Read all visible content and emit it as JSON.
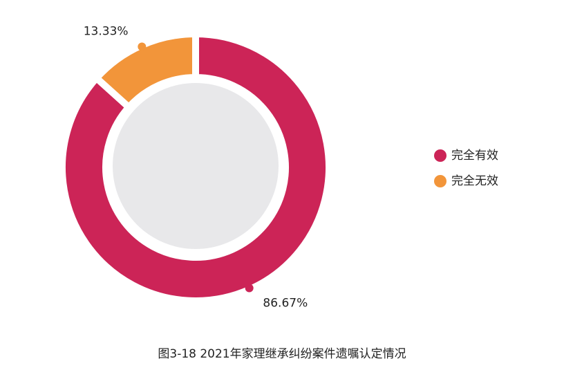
{
  "chart_data": {
    "type": "donut",
    "title": "图3-18  2021年家理继承纠纷案件遗嘱认定情况",
    "categories": [
      "完全有效",
      "完全无效"
    ],
    "values": [
      86.67,
      13.33
    ],
    "value_labels": [
      "86.67%",
      "13.33%"
    ],
    "colors": [
      "#cc2457",
      "#f2953a"
    ],
    "legend": "right"
  }
}
